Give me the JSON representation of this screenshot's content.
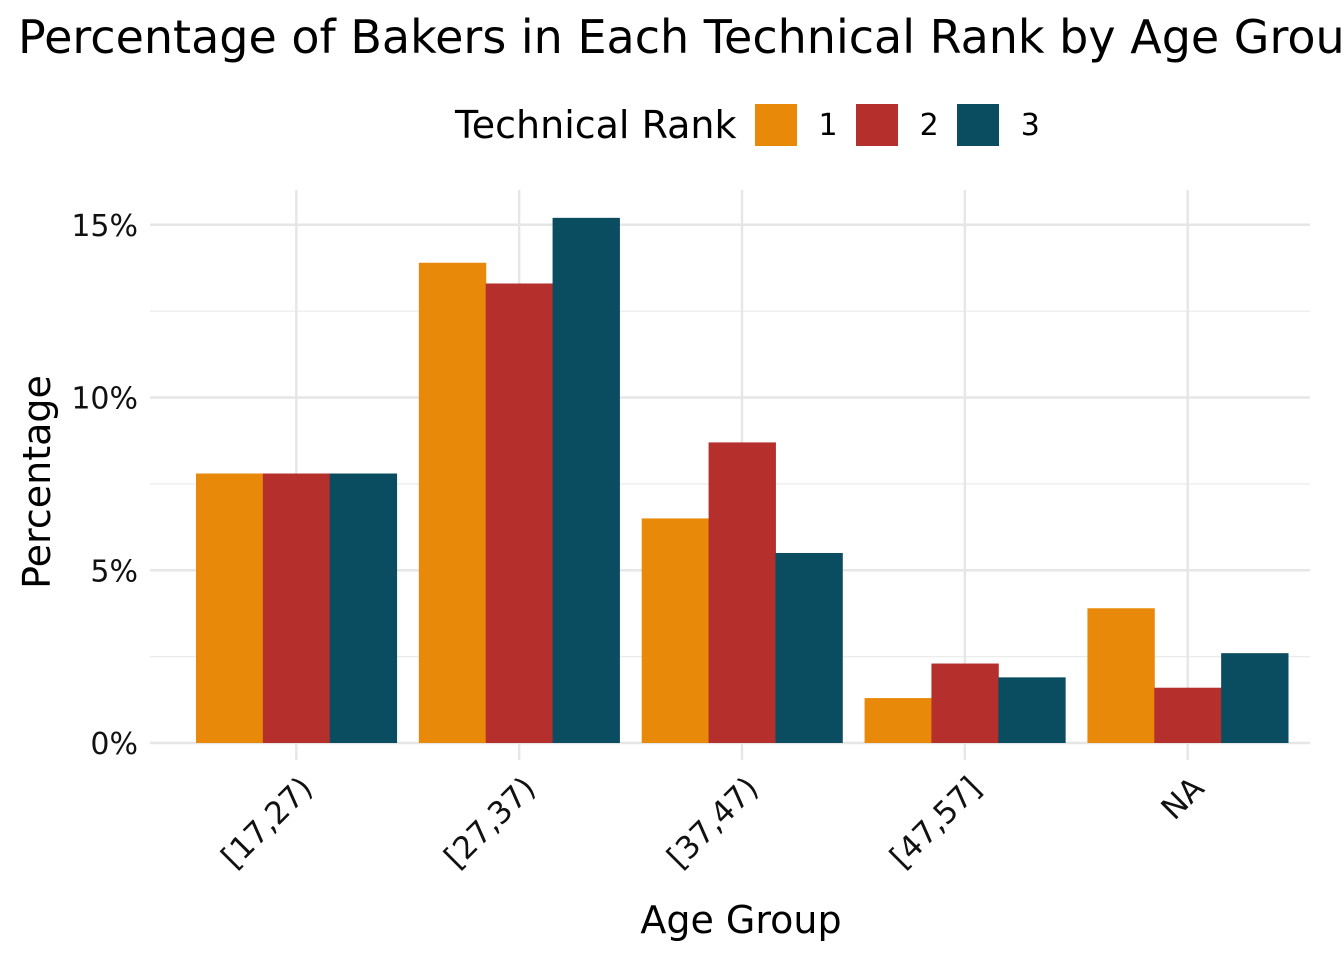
{
  "chart_data": {
    "type": "bar",
    "title": "Percentage of Bakers in Each Technical Rank by Age Group",
    "xlabel": "Age Group",
    "ylabel": "Percentage",
    "categories": [
      "[17,27)",
      "[27,37)",
      "[37,47)",
      "[47,57]",
      "NA"
    ],
    "series": [
      {
        "name": "1",
        "values": [
          7.8,
          13.9,
          6.5,
          1.3,
          3.9
        ],
        "color": "#E8890A"
      },
      {
        "name": "2",
        "values": [
          7.8,
          13.3,
          8.7,
          2.3,
          1.6
        ],
        "color": "#B52F2C"
      },
      {
        "name": "3",
        "values": [
          7.8,
          15.2,
          5.5,
          1.9,
          2.6
        ],
        "color": "#0B4D60"
      }
    ],
    "ylim": [
      0,
      15.7
    ],
    "yticks": [
      0,
      5,
      10,
      15
    ],
    "ytick_labels": [
      "0%",
      "5%",
      "10%",
      "15%"
    ],
    "grid": true,
    "legend_title": "Technical Rank",
    "legend_position": "top"
  }
}
